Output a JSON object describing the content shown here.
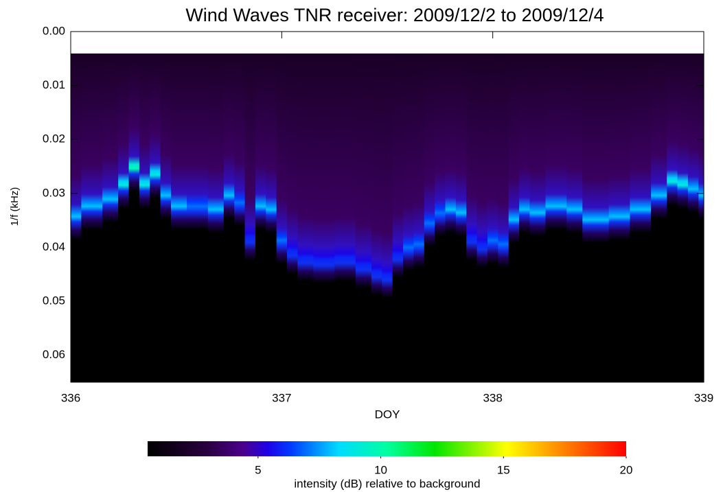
{
  "chart_data": {
    "type": "spectrogram",
    "title": "Wind Waves TNR receiver: 2009/12/2 to 2009/12/4",
    "x_label": "DOY",
    "y_label": "1/f (kHz)",
    "colorbar_label": "intensity (dB) relative to background",
    "xlim": [
      336,
      339
    ],
    "xticks": [
      336,
      337,
      338,
      339
    ],
    "ylim": [
      0,
      0.065
    ],
    "y_inverted": true,
    "yticks": [
      {
        "value": 0,
        "label": "0.00"
      },
      0.01,
      0.02,
      0.03,
      0.04,
      0.05,
      0.06
    ],
    "clim": [
      0.5,
      20
    ],
    "cticks": [
      5,
      10,
      15,
      20
    ],
    "x": [
      336.0,
      336.1,
      336.2,
      336.25,
      336.3,
      336.35,
      336.4,
      336.45,
      336.5,
      336.6,
      336.7,
      336.75,
      336.8,
      336.85,
      336.9,
      336.95,
      337.0,
      337.05,
      337.1,
      337.2,
      337.3,
      337.4,
      337.45,
      337.5,
      337.55,
      337.6,
      337.65,
      337.7,
      337.75,
      337.8,
      337.85,
      337.9,
      337.95,
      338.0,
      338.05,
      338.1,
      338.15,
      338.2,
      338.3,
      338.4,
      338.45,
      338.5,
      338.6,
      338.7,
      338.8,
      338.85,
      338.9,
      338.95,
      339.0
    ],
    "ridge": [
      0.0343,
      0.0324,
      0.0311,
      0.0285,
      0.0254,
      0.0285,
      0.0266,
      0.0304,
      0.0324,
      0.0324,
      0.033,
      0.0304,
      0.0317,
      0.0381,
      0.0324,
      0.033,
      0.0387,
      0.0406,
      0.0419,
      0.0423,
      0.0419,
      0.0432,
      0.0445,
      0.0451,
      0.0413,
      0.04,
      0.0394,
      0.0355,
      0.0336,
      0.033,
      0.0336,
      0.0381,
      0.0394,
      0.0387,
      0.0394,
      0.0349,
      0.033,
      0.0336,
      0.0324,
      0.033,
      0.0349,
      0.0349,
      0.0343,
      0.033,
      0.0304,
      0.0279,
      0.0285,
      0.0292,
      0.0304
    ],
    "intensity": [
      8,
      8,
      8,
      9,
      10,
      9,
      9,
      8,
      8,
      7,
      8,
      8,
      7,
      6,
      8,
      8,
      7,
      6,
      6,
      6,
      6,
      6,
      6,
      6,
      6,
      7,
      7,
      7,
      7,
      8,
      8,
      6,
      6,
      7,
      7,
      8,
      8,
      8,
      8,
      8,
      8,
      8,
      8,
      8,
      8,
      9,
      9,
      8,
      8
    ]
  }
}
